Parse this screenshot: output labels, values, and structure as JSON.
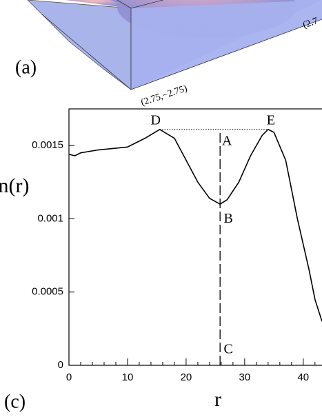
{
  "panel_labels": [
    "(a)",
    "(c)"
  ],
  "box_labels": [
    "(2.75,−2.75)",
    "(2.7"
  ],
  "chart_data": {
    "type": "line",
    "xlabel": "r",
    "ylabel": "n(r)",
    "annotations": [
      "D",
      "E",
      "A",
      "B",
      "C"
    ],
    "x": [
      0,
      1,
      2,
      5,
      10,
      13,
      15.5,
      18,
      20,
      22,
      24,
      25.8,
      27,
      29,
      31,
      33,
      34,
      35,
      37,
      39,
      41,
      42,
      43.2
    ],
    "series": [
      {
        "color": "#000000",
        "values": [
          0.00144,
          0.00143,
          0.00145,
          0.00147,
          0.00149,
          0.00155,
          0.00161,
          0.00155,
          0.0014,
          0.00125,
          0.00114,
          0.0011,
          0.00113,
          0.00125,
          0.00143,
          0.00157,
          0.00161,
          0.00159,
          0.0014,
          0.001,
          0.00065,
          0.00045,
          0.0003
        ]
      }
    ],
    "xlim": [
      0,
      43.2
    ],
    "ylim": [
      0,
      0.00175
    ],
    "xticks": [
      0,
      10,
      20,
      30,
      40
    ],
    "xminorticks": [
      2,
      4,
      6,
      8,
      12,
      14,
      16,
      18,
      22,
      24,
      26,
      28,
      32,
      34,
      36,
      38,
      42
    ],
    "yticks": [
      0,
      0.0005,
      0.001,
      0.0015
    ]
  }
}
